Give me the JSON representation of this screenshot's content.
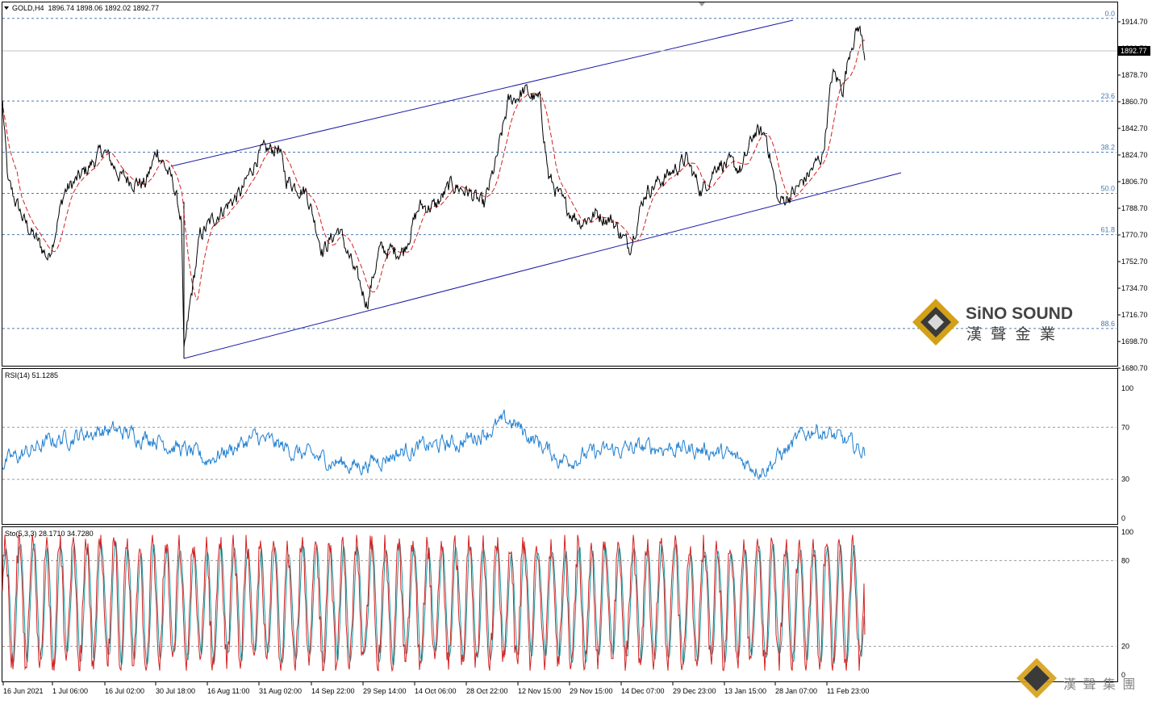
{
  "header": {
    "symbol": "GOLD,H4",
    "ohlc": "1896.74 1898.06 1892.02 1892.77",
    "current_price": "1892.77"
  },
  "logo": {
    "brand": "SiNO SOUND",
    "chinese": "漢 聲 金 業",
    "watermark": "漢 聲 集 團"
  },
  "colors": {
    "price": "#000000",
    "ma": "#d42020",
    "channel": "#1a1aa6",
    "fib": "#4a7bb0",
    "rsi": "#1e7fd0",
    "stoch_main": "#d42020",
    "stoch_signal": "#1a9aa0"
  },
  "price_panel": {
    "y_ticks": [
      "1914.70",
      "1896.70",
      "1878.70",
      "1860.70",
      "1842.70",
      "1824.70",
      "1806.70",
      "1788.70",
      "1770.70",
      "1752.70",
      "1734.70",
      "1716.70",
      "1698.70",
      "1680.70"
    ],
    "fib_labels": [
      "0.0",
      "23.6",
      "38.2",
      "50.0",
      "61.8",
      "88.6"
    ]
  },
  "rsi_panel": {
    "label": "RSI(14) 51.1285",
    "levels": [
      "100",
      "70",
      "30",
      "0"
    ]
  },
  "stoch_panel": {
    "label": "Sto(5,3,3) 28.1710 34.7280",
    "levels": [
      "100",
      "80",
      "20",
      "0"
    ]
  },
  "dates": [
    "16 Jun 2021",
    "1 Jul 06:00",
    "16 Jul 02:00",
    "30 Jul 18:00",
    "16 Aug 11:00",
    "31 Aug 02:00",
    "14 Sep 22:00",
    "29 Sep 14:00",
    "14 Oct 06:00",
    "28 Oct 22:00",
    "12 Nov 15:00",
    "29 Nov 15:00",
    "14 Dec 07:00",
    "29 Dec 23:00",
    "13 Jan 15:00",
    "28 Jan 07:00",
    "11 Feb 23:00"
  ],
  "chart_data": {
    "type": "line",
    "title": "GOLD,H4",
    "x": [
      "16 Jun 2021",
      "1 Jul 06:00",
      "16 Jul 02:00",
      "30 Jul 18:00",
      "16 Aug 11:00",
      "31 Aug 02:00",
      "14 Sep 22:00",
      "29 Sep 14:00",
      "14 Oct 06:00",
      "28 Oct 22:00",
      "12 Nov 15:00",
      "29 Nov 15:00",
      "14 Dec 07:00",
      "29 Dec 23:00",
      "13 Jan 15:00",
      "28 Jan 07:00",
      "11 Feb 23:00"
    ],
    "ylim": [
      1680.7,
      1924
    ],
    "series": [
      {
        "name": "GOLD,H4",
        "values": [
          1782,
          1788,
          1812,
          1808,
          1790,
          1823,
          1784,
          1750,
          1772,
          1822,
          1862,
          1782,
          1794,
          1812,
          1825,
          1800,
          1900
        ]
      }
    ],
    "fib_levels": [
      {
        "label": "0.0",
        "value": 1917.0
      },
      {
        "label": "23.6",
        "value": 1861.2
      },
      {
        "label": "38.2",
        "value": 1826.6
      },
      {
        "label": "50.0",
        "value": 1798.8
      },
      {
        "label": "61.8",
        "value": 1770.9
      },
      {
        "label": "88.6",
        "value": 1707.5
      }
    ],
    "current": 1892.77
  },
  "rsi_chart": {
    "type": "line",
    "label": "RSI(14) 51.1285",
    "ylim": [
      0,
      100
    ],
    "levels": [
      70,
      30
    ],
    "values": [
      42,
      60,
      68,
      62,
      45,
      62,
      48,
      40,
      53,
      58,
      75,
      45,
      52,
      55,
      52,
      38,
      70,
      51
    ]
  },
  "stoch_chart": {
    "type": "line",
    "label": "Sto(5,3,3) 28.1710 34.7280",
    "ylim": [
      0,
      100
    ],
    "levels": [
      80,
      20
    ],
    "main_last": 28.171,
    "signal_last": 34.728
  }
}
